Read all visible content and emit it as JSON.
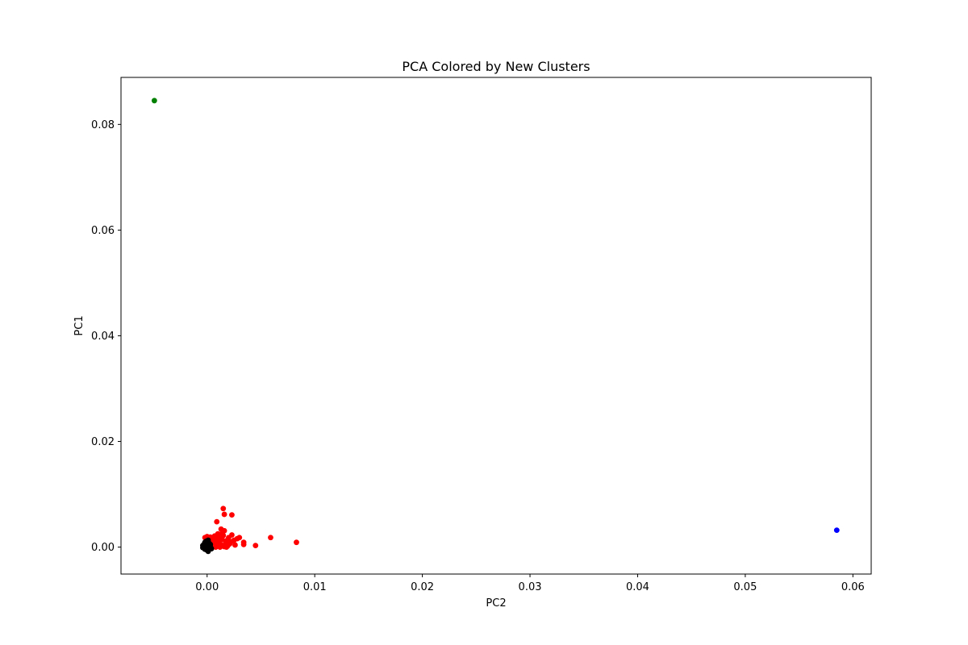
{
  "chart_data": {
    "type": "scatter",
    "title": "PCA Colored by New Clusters",
    "xlabel": "PC2",
    "ylabel": "PC1",
    "xlim": [
      -0.008,
      0.0617
    ],
    "ylim": [
      -0.0051,
      0.0889
    ],
    "xticks": [
      {
        "value": 0.0,
        "label": "0.00"
      },
      {
        "value": 0.01,
        "label": "0.01"
      },
      {
        "value": 0.02,
        "label": "0.02"
      },
      {
        "value": 0.03,
        "label": "0.03"
      },
      {
        "value": 0.04,
        "label": "0.04"
      },
      {
        "value": 0.05,
        "label": "0.05"
      },
      {
        "value": 0.06,
        "label": "0.06"
      }
    ],
    "yticks": [
      {
        "value": 0.0,
        "label": "0.00"
      },
      {
        "value": 0.02,
        "label": "0.02"
      },
      {
        "value": 0.04,
        "label": "0.04"
      },
      {
        "value": 0.06,
        "label": "0.06"
      },
      {
        "value": 0.08,
        "label": "0.08"
      }
    ],
    "grid": false,
    "series": [
      {
        "color": "#ff0000",
        "points": [
          [
            0.0015,
            0.0073
          ],
          [
            0.0023,
            0.0061
          ],
          [
            0.0016,
            0.0062
          ],
          [
            0.0009,
            0.0048
          ],
          [
            0.0013,
            0.0034
          ],
          [
            0.0016,
            0.0031
          ],
          [
            0.0059,
            0.0018
          ],
          [
            0.0083,
            0.0009
          ],
          [
            0.0045,
            0.0003
          ],
          [
            0.0034,
            0.0005
          ],
          [
            0.0034,
            0.0009
          ],
          [
            0.003,
            0.0018
          ],
          [
            0.0028,
            0.0016
          ],
          [
            0.0023,
            0.0023
          ],
          [
            0.0026,
            0.0004
          ],
          [
            0.0022,
            0.001
          ],
          [
            0.002,
            0.0018
          ],
          [
            0.0019,
            0.0002
          ],
          [
            0.0018,
            0.0012
          ],
          [
            0.0017,
            0.0006
          ],
          [
            0.0015,
            0.0022
          ],
          [
            0.0014,
            0.0014
          ],
          [
            0.0013,
            0.0004
          ],
          [
            0.0012,
            0.0018
          ],
          [
            0.0011,
            0.0008
          ],
          [
            0.001,
            0.0025
          ],
          [
            0.001,
            0.0012
          ],
          [
            0.0009,
            0.0003
          ],
          [
            0.0008,
            0.0016
          ],
          [
            0.0007,
            0.0021
          ],
          [
            0.0007,
            0.0007
          ],
          [
            0.0006,
            0.0012
          ],
          [
            0.0005,
            0.0018
          ],
          [
            0.0005,
            0.0004
          ],
          [
            0.0004,
            0.001
          ],
          [
            0.0003,
            0.0019
          ],
          [
            0.0002,
            0.0014
          ],
          [
            0.0002,
            0.0006
          ],
          [
            0.0001,
            0.0017
          ],
          [
            0.0,
            0.002
          ],
          [
            -0.0001,
            0.0015
          ],
          [
            -0.0002,
            0.0018
          ],
          [
            0.0012,
            0.0
          ],
          [
            0.0016,
            0.0001
          ],
          [
            0.0021,
            0.0006
          ],
          [
            0.0025,
            0.0013
          ],
          [
            0.0008,
            0.0
          ],
          [
            0.0004,
            0.0001
          ],
          [
            0.0014,
            0.0026
          ],
          [
            0.0018,
            0.0
          ],
          [
            0.0011,
            0.0005
          ],
          [
            0.0006,
            0.0009
          ]
        ]
      },
      {
        "color": "#000000",
        "points": [
          [
            -0.0003,
            0.0
          ],
          [
            -0.0002,
            0.0006
          ],
          [
            -0.0001,
            0.0002
          ],
          [
            0.0,
            -0.0006
          ],
          [
            0.0001,
            0.0004
          ],
          [
            0.0002,
            -0.0002
          ],
          [
            -0.0004,
            0.0003
          ],
          [
            0.0,
            0.0008
          ],
          [
            -0.0002,
            -0.0004
          ],
          [
            0.0003,
            0.0001
          ],
          [
            0.0001,
            -0.0008
          ],
          [
            -0.0001,
            0.0011
          ],
          [
            0.0002,
            0.0007
          ],
          [
            -0.0003,
            0.0005
          ],
          [
            0.0004,
            -0.0003
          ],
          [
            0.0,
            0.0001
          ],
          [
            -0.0002,
            0.0009
          ],
          [
            0.0001,
            0.0013
          ],
          [
            -0.0004,
            -0.0001
          ],
          [
            0.0003,
            0.0005
          ]
        ]
      },
      {
        "color": "#008000",
        "points": [
          [
            -0.0049,
            0.0845
          ]
        ]
      },
      {
        "color": "#0000ff",
        "points": [
          [
            0.0585,
            0.0032
          ]
        ]
      }
    ]
  }
}
